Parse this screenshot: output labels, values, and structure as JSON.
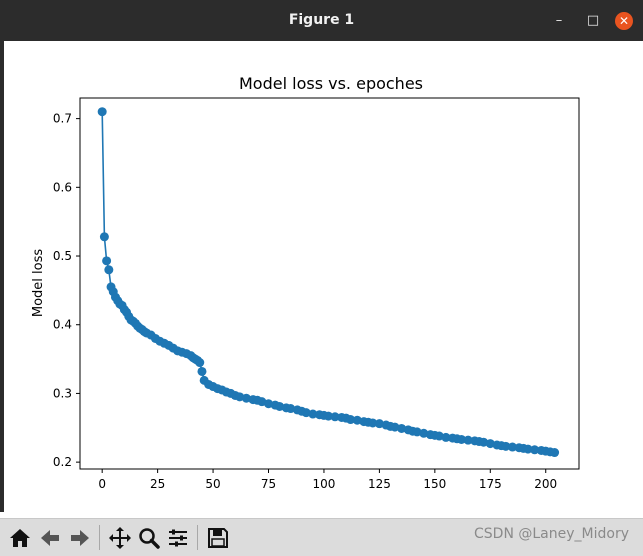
{
  "window": {
    "title": "Figure 1",
    "minimize_glyph": "–",
    "maximize_glyph": "□",
    "close_glyph": "✕"
  },
  "toolbar": {
    "items": [
      "home-icon",
      "back-icon",
      "forward-icon",
      "pan-icon",
      "zoom-icon",
      "configure-subplots-icon",
      "save-icon"
    ]
  },
  "watermark": "CSDN @Laney_Midory",
  "colors": {
    "series": "#1f77b4",
    "titlebar": "#2c2c2c",
    "close_button": "#e95420",
    "toolbar": "#dcdcdc"
  },
  "chart_data": {
    "type": "line",
    "title": "Model loss vs. epoches",
    "xlabel": "",
    "ylabel": "Model loss",
    "xlim": [
      -10,
      215
    ],
    "ylim": [
      0.19,
      0.73
    ],
    "xticks": [
      0,
      25,
      50,
      75,
      100,
      125,
      150,
      175,
      200
    ],
    "yticks": [
      0.2,
      0.3,
      0.4,
      0.5,
      0.6,
      0.7
    ],
    "ytick_labels": [
      "0.2",
      "0.3",
      "0.4",
      "0.5",
      "0.6",
      "0.7"
    ],
    "grid": false,
    "markers": true,
    "series": [
      {
        "x": [
          0,
          1,
          2,
          3,
          4,
          5,
          6,
          7,
          8,
          9,
          10,
          11,
          12,
          13,
          14,
          15,
          16,
          17,
          18,
          19,
          20,
          22,
          24,
          26,
          28,
          30,
          32,
          34,
          36,
          38,
          40,
          41,
          42,
          43,
          44,
          45,
          46,
          48,
          50,
          52,
          54,
          56,
          58,
          60,
          62,
          65,
          68,
          70,
          72,
          75,
          78,
          80,
          83,
          85,
          88,
          90,
          92,
          95,
          98,
          100,
          102,
          105,
          108,
          110,
          112,
          115,
          118,
          120,
          122,
          125,
          128,
          130,
          132,
          135,
          138,
          140,
          142,
          145,
          148,
          150,
          152,
          155,
          158,
          160,
          162,
          165,
          168,
          170,
          172,
          175,
          178,
          180,
          182,
          185,
          188,
          190,
          192,
          195,
          198,
          200,
          202,
          204
        ],
        "y": [
          0.71,
          0.528,
          0.493,
          0.48,
          0.455,
          0.448,
          0.44,
          0.435,
          0.43,
          0.428,
          0.422,
          0.418,
          0.412,
          0.407,
          0.405,
          0.402,
          0.398,
          0.395,
          0.393,
          0.39,
          0.388,
          0.385,
          0.38,
          0.376,
          0.373,
          0.37,
          0.366,
          0.362,
          0.36,
          0.358,
          0.355,
          0.352,
          0.35,
          0.348,
          0.345,
          0.332,
          0.319,
          0.313,
          0.31,
          0.307,
          0.305,
          0.302,
          0.3,
          0.297,
          0.295,
          0.293,
          0.291,
          0.29,
          0.288,
          0.285,
          0.283,
          0.281,
          0.279,
          0.278,
          0.276,
          0.274,
          0.272,
          0.27,
          0.269,
          0.268,
          0.267,
          0.266,
          0.265,
          0.264,
          0.262,
          0.261,
          0.259,
          0.258,
          0.257,
          0.256,
          0.254,
          0.252,
          0.251,
          0.249,
          0.247,
          0.245,
          0.244,
          0.242,
          0.24,
          0.239,
          0.238,
          0.236,
          0.235,
          0.234,
          0.233,
          0.232,
          0.231,
          0.23,
          0.229,
          0.227,
          0.225,
          0.224,
          0.223,
          0.222,
          0.221,
          0.22,
          0.219,
          0.218,
          0.217,
          0.216,
          0.215,
          0.214
        ]
      }
    ]
  }
}
